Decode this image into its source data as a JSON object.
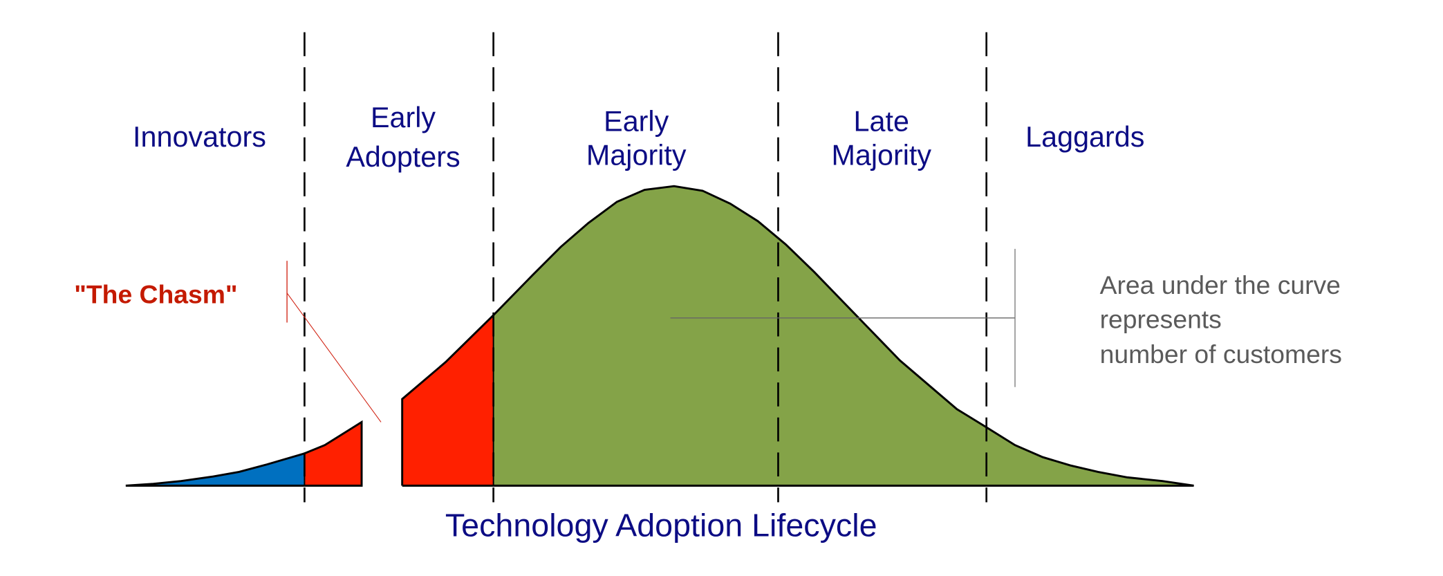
{
  "title": "Technology Adoption Lifecycle",
  "segments": [
    {
      "lines": [
        "Innovators"
      ]
    },
    {
      "lines": [
        "Early",
        "Adopters"
      ]
    },
    {
      "lines": [
        "Early",
        "Majority"
      ]
    },
    {
      "lines": [
        "Late",
        "Majority"
      ]
    },
    {
      "lines": [
        "Laggards"
      ]
    }
  ],
  "chasm_label": "\"The Chasm\"",
  "note": {
    "lines": [
      "Area under the curve",
      "represents",
      "number of customers"
    ]
  },
  "colors": {
    "innovators_fill": "#0070c0",
    "early_adopters_fill": "#ff2000",
    "majority_fill": "#84a348",
    "label_text": "#0c0c84",
    "chasm_text": "#c41a00",
    "note_text": "#5a5a5a"
  }
}
